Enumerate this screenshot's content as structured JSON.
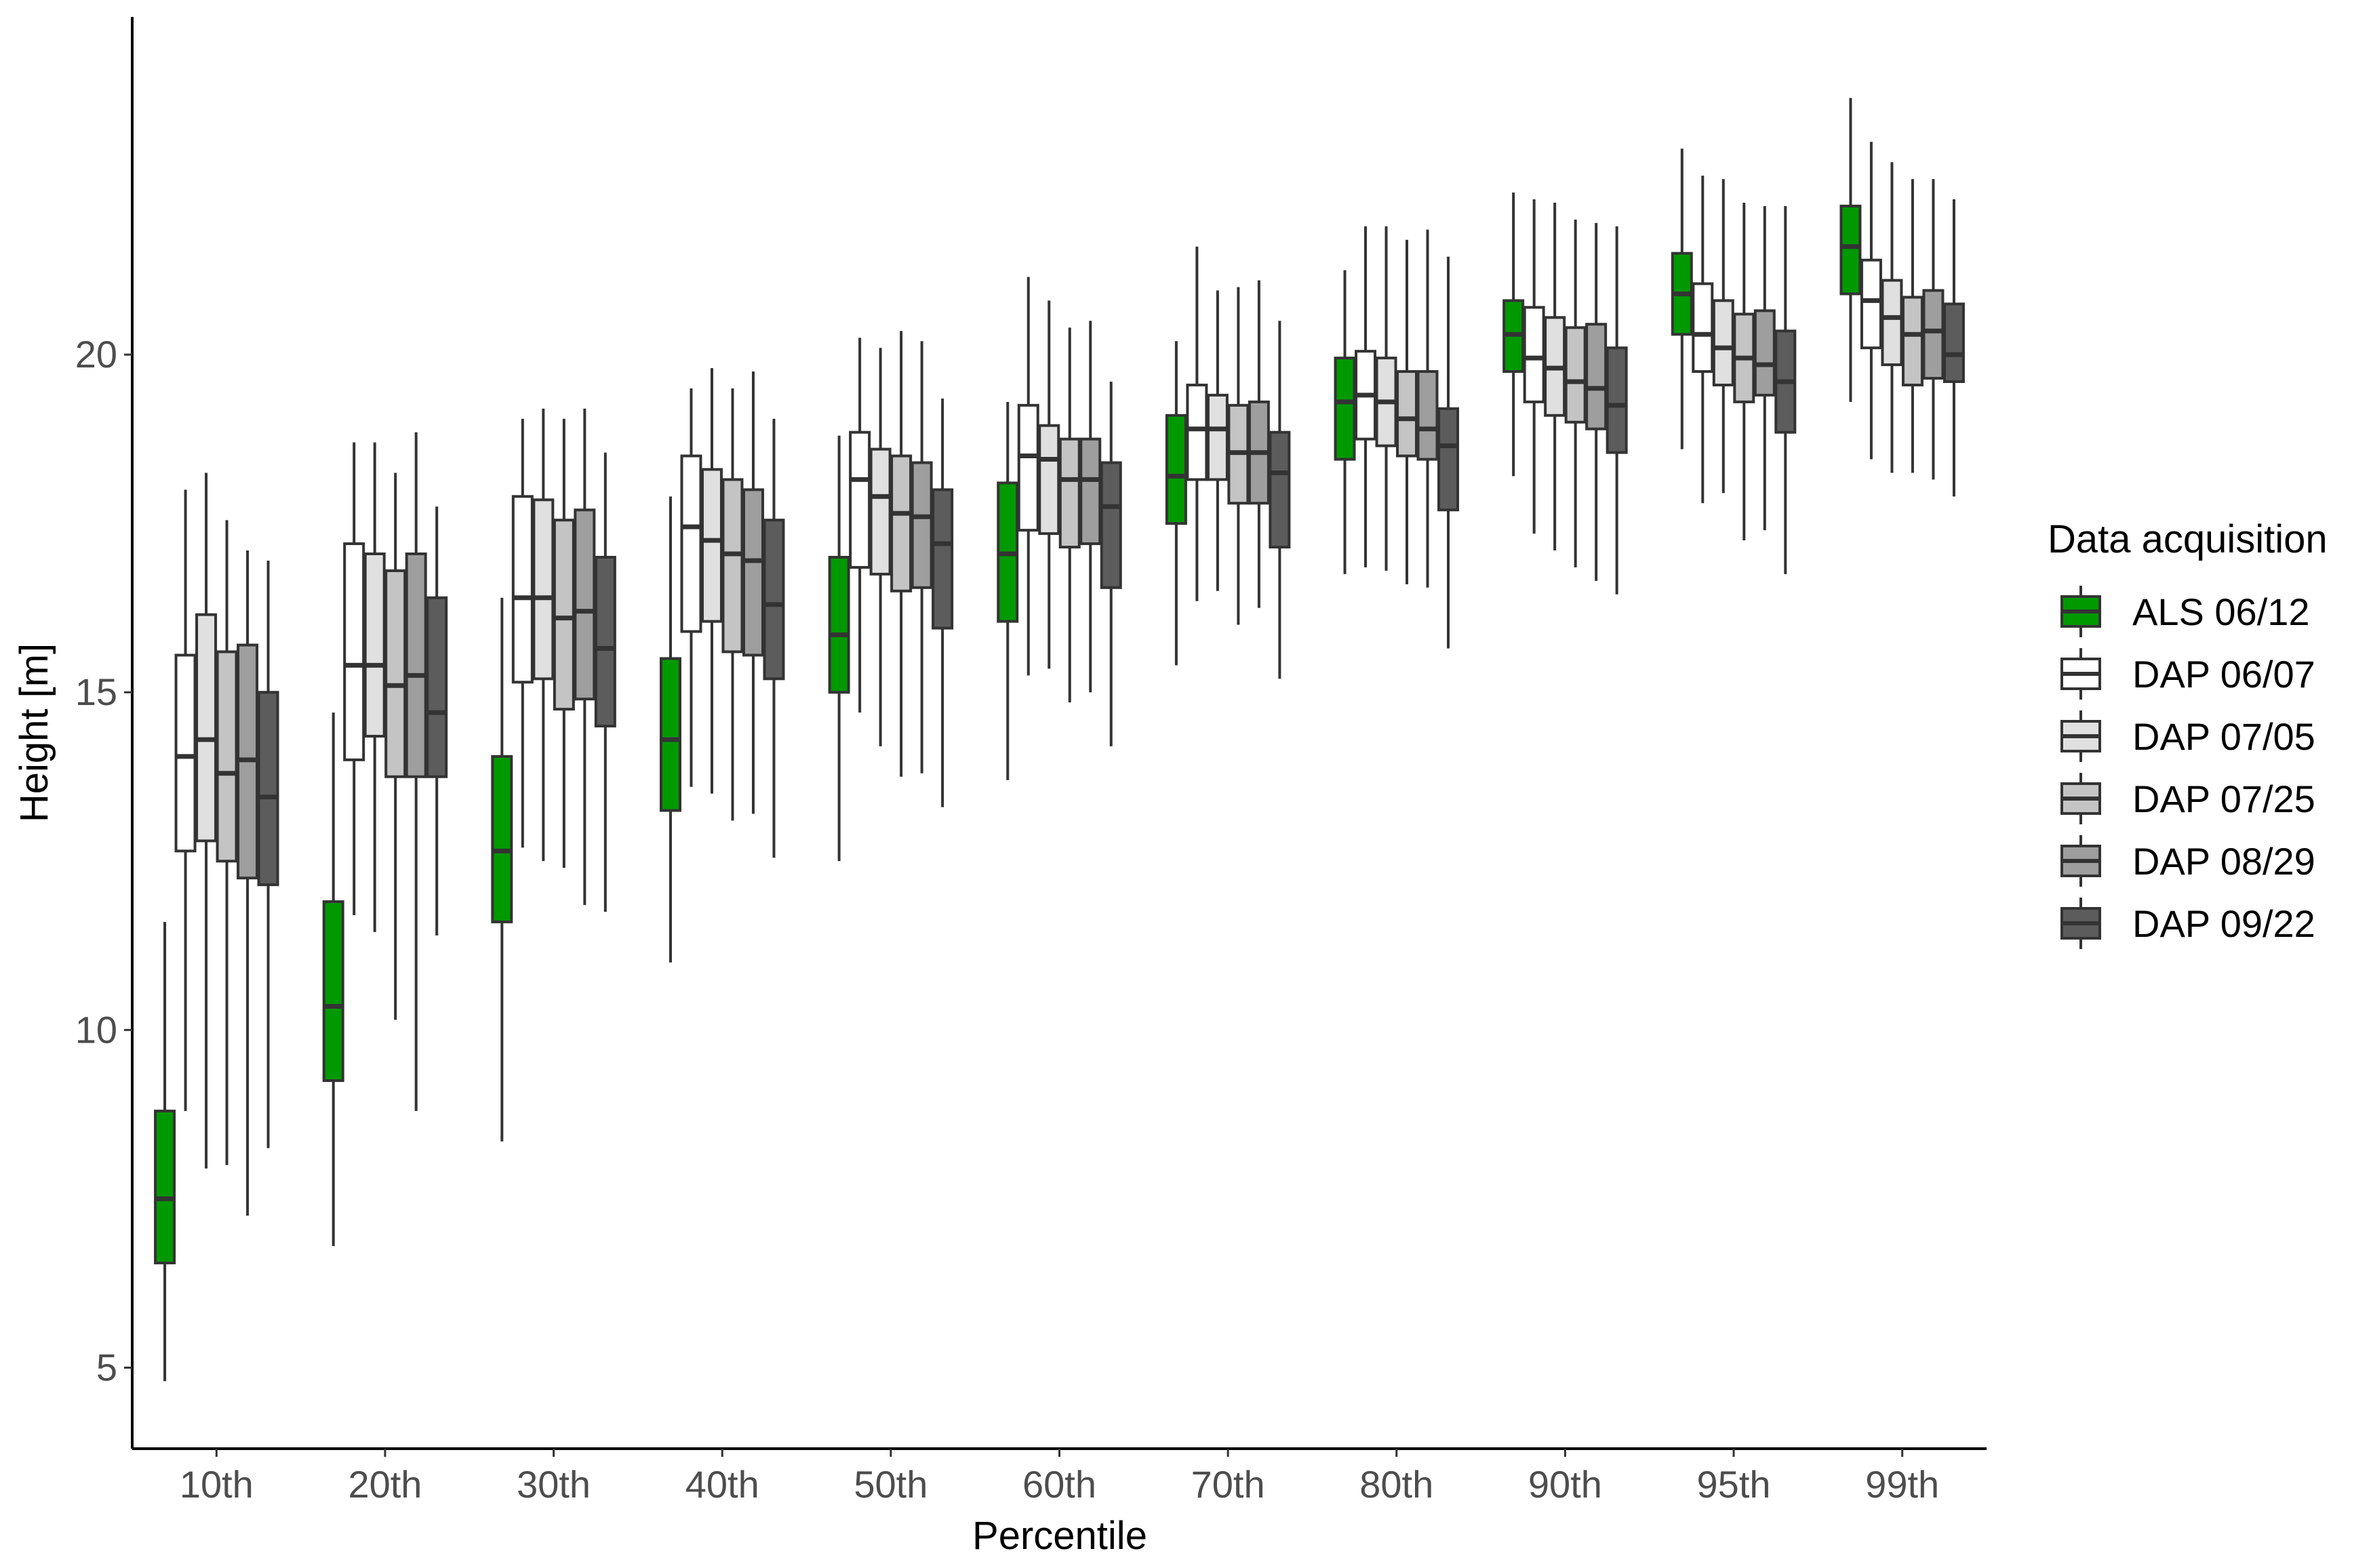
{
  "chart_data": {
    "type": "box",
    "xlabel": "Percentile",
    "ylabel": "Height [m]",
    "ylim": [
      3.8,
      25.0
    ],
    "yticks": [
      5,
      10,
      15,
      20
    ],
    "ytick_labels": [
      "5",
      "10",
      "15",
      "20"
    ],
    "categories": [
      "10th",
      "20th",
      "30th",
      "40th",
      "50th",
      "60th",
      "70th",
      "80th",
      "90th",
      "95th",
      "99th"
    ],
    "grid": false,
    "legend": {
      "title": "Data acquisition",
      "position": "right"
    },
    "series": [
      {
        "name": "ALS 06/12",
        "color": "#009900",
        "boxes": [
          {
            "min": 4.8,
            "q1": 6.55,
            "median": 7.5,
            "q3": 8.8,
            "max": 11.6
          },
          {
            "min": 6.8,
            "q1": 9.25,
            "median": 10.35,
            "q3": 11.9,
            "max": 14.7
          },
          {
            "min": 8.35,
            "q1": 11.6,
            "median": 12.65,
            "q3": 14.05,
            "max": 16.4
          },
          {
            "min": 11.0,
            "q1": 13.25,
            "median": 14.3,
            "q3": 15.5,
            "max": 17.9
          },
          {
            "min": 12.5,
            "q1": 15.0,
            "median": 15.85,
            "q3": 17.0,
            "max": 18.8
          },
          {
            "min": 13.7,
            "q1": 16.05,
            "median": 17.05,
            "q3": 18.1,
            "max": 19.3
          },
          {
            "min": 15.4,
            "q1": 17.5,
            "median": 18.2,
            "q3": 19.1,
            "max": 20.2
          },
          {
            "min": 16.75,
            "q1": 18.45,
            "median": 19.3,
            "q3": 19.95,
            "max": 21.25
          },
          {
            "min": 18.2,
            "q1": 19.75,
            "median": 20.3,
            "q3": 20.8,
            "max": 22.4
          },
          {
            "min": 18.6,
            "q1": 20.3,
            "median": 20.9,
            "q3": 21.5,
            "max": 23.05
          },
          {
            "min": 19.3,
            "q1": 20.9,
            "median": 21.6,
            "q3": 22.2,
            "max": 23.8
          }
        ]
      },
      {
        "name": "DAP 06/07",
        "color": "#ffffff",
        "boxes": [
          {
            "min": 8.8,
            "q1": 12.65,
            "median": 14.05,
            "q3": 15.55,
            "max": 18.0
          },
          {
            "min": 11.7,
            "q1": 14.0,
            "median": 15.4,
            "q3": 17.2,
            "max": 18.7
          },
          {
            "min": 12.7,
            "q1": 15.15,
            "median": 16.4,
            "q3": 17.9,
            "max": 19.05
          },
          {
            "min": 13.6,
            "q1": 15.9,
            "median": 17.45,
            "q3": 18.5,
            "max": 19.5
          },
          {
            "min": 14.7,
            "q1": 16.85,
            "median": 18.15,
            "q3": 18.85,
            "max": 20.25
          },
          {
            "min": 15.25,
            "q1": 17.4,
            "median": 18.5,
            "q3": 19.25,
            "max": 21.15
          },
          {
            "min": 16.35,
            "q1": 18.15,
            "median": 18.9,
            "q3": 19.55,
            "max": 21.6
          },
          {
            "min": 16.85,
            "q1": 18.75,
            "median": 19.4,
            "q3": 20.05,
            "max": 21.9
          },
          {
            "min": 17.35,
            "q1": 19.3,
            "median": 19.95,
            "q3": 20.7,
            "max": 22.3
          },
          {
            "min": 17.8,
            "q1": 19.75,
            "median": 20.3,
            "q3": 21.05,
            "max": 22.65
          },
          {
            "min": 18.45,
            "q1": 20.1,
            "median": 20.8,
            "q3": 21.4,
            "max": 23.15
          }
        ]
      },
      {
        "name": "DAP 07/05",
        "color": "#e0e0e0",
        "boxes": [
          {
            "min": 7.95,
            "q1": 12.8,
            "median": 14.3,
            "q3": 16.15,
            "max": 18.25
          },
          {
            "min": 11.45,
            "q1": 14.35,
            "median": 15.4,
            "q3": 17.05,
            "max": 18.7
          },
          {
            "min": 12.5,
            "q1": 15.2,
            "median": 16.4,
            "q3": 17.85,
            "max": 19.2
          },
          {
            "min": 13.5,
            "q1": 16.05,
            "median": 17.25,
            "q3": 18.3,
            "max": 19.8
          },
          {
            "min": 14.2,
            "q1": 16.75,
            "median": 17.9,
            "q3": 18.6,
            "max": 20.1
          },
          {
            "min": 15.35,
            "q1": 17.35,
            "median": 18.45,
            "q3": 18.95,
            "max": 20.8
          },
          {
            "min": 16.5,
            "q1": 18.15,
            "median": 18.9,
            "q3": 19.4,
            "max": 20.95
          },
          {
            "min": 16.8,
            "q1": 18.65,
            "median": 19.3,
            "q3": 19.95,
            "max": 21.9
          },
          {
            "min": 17.1,
            "q1": 19.1,
            "median": 19.8,
            "q3": 20.55,
            "max": 22.25
          },
          {
            "min": 17.95,
            "q1": 19.55,
            "median": 20.1,
            "q3": 20.8,
            "max": 22.6
          },
          {
            "min": 18.25,
            "q1": 19.85,
            "median": 20.55,
            "q3": 21.1,
            "max": 22.85
          }
        ]
      },
      {
        "name": "DAP 07/25",
        "color": "#c4c4c4",
        "boxes": [
          {
            "min": 8.0,
            "q1": 12.5,
            "median": 13.8,
            "q3": 15.6,
            "max": 17.55
          },
          {
            "min": 10.15,
            "q1": 13.75,
            "median": 15.1,
            "q3": 16.8,
            "max": 18.25
          },
          {
            "min": 12.4,
            "q1": 14.75,
            "median": 16.1,
            "q3": 17.55,
            "max": 19.05
          },
          {
            "min": 13.1,
            "q1": 15.6,
            "median": 17.05,
            "q3": 18.15,
            "max": 19.5
          },
          {
            "min": 13.75,
            "q1": 16.5,
            "median": 17.65,
            "q3": 18.5,
            "max": 20.35
          },
          {
            "min": 14.85,
            "q1": 17.15,
            "median": 18.15,
            "q3": 18.75,
            "max": 20.4
          },
          {
            "min": 16.0,
            "q1": 17.8,
            "median": 18.55,
            "q3": 19.25,
            "max": 21.0
          },
          {
            "min": 16.6,
            "q1": 18.5,
            "median": 19.05,
            "q3": 19.75,
            "max": 21.7
          },
          {
            "min": 16.85,
            "q1": 19.0,
            "median": 19.6,
            "q3": 20.4,
            "max": 22.0
          },
          {
            "min": 17.25,
            "q1": 19.3,
            "median": 19.95,
            "q3": 20.6,
            "max": 22.25
          },
          {
            "min": 18.25,
            "q1": 19.55,
            "median": 20.3,
            "q3": 20.85,
            "max": 22.6
          }
        ]
      },
      {
        "name": "DAP 08/29",
        "color": "#9e9e9e",
        "boxes": [
          {
            "min": 7.25,
            "q1": 12.25,
            "median": 14.0,
            "q3": 15.7,
            "max": 17.1
          },
          {
            "min": 8.8,
            "q1": 13.75,
            "median": 15.25,
            "q3": 17.05,
            "max": 18.85
          },
          {
            "min": 11.85,
            "q1": 14.9,
            "median": 16.2,
            "q3": 17.7,
            "max": 19.2
          },
          {
            "min": 13.2,
            "q1": 15.55,
            "median": 16.95,
            "q3": 18.0,
            "max": 19.75
          },
          {
            "min": 13.8,
            "q1": 16.55,
            "median": 17.6,
            "q3": 18.4,
            "max": 20.2
          },
          {
            "min": 15.0,
            "q1": 17.2,
            "median": 18.15,
            "q3": 18.75,
            "max": 20.5
          },
          {
            "min": 16.25,
            "q1": 17.8,
            "median": 18.55,
            "q3": 19.3,
            "max": 21.1
          },
          {
            "min": 16.55,
            "q1": 18.45,
            "median": 18.9,
            "q3": 19.75,
            "max": 21.85
          },
          {
            "min": 16.65,
            "q1": 18.9,
            "median": 19.5,
            "q3": 20.45,
            "max": 21.95
          },
          {
            "min": 17.4,
            "q1": 19.4,
            "median": 19.85,
            "q3": 20.65,
            "max": 22.2
          },
          {
            "min": 18.15,
            "q1": 19.65,
            "median": 20.35,
            "q3": 20.95,
            "max": 22.6
          }
        ]
      },
      {
        "name": "DAP 09/22",
        "color": "#5c5c5c",
        "boxes": [
          {
            "min": 8.25,
            "q1": 12.15,
            "median": 13.45,
            "q3": 15.0,
            "max": 16.95
          },
          {
            "min": 11.4,
            "q1": 13.75,
            "median": 14.7,
            "q3": 16.4,
            "max": 17.75
          },
          {
            "min": 11.75,
            "q1": 14.5,
            "median": 15.65,
            "q3": 17.0,
            "max": 18.55
          },
          {
            "min": 12.55,
            "q1": 15.2,
            "median": 16.3,
            "q3": 17.55,
            "max": 19.05
          },
          {
            "min": 13.3,
            "q1": 15.95,
            "median": 17.2,
            "q3": 18.0,
            "max": 19.35
          },
          {
            "min": 14.2,
            "q1": 16.55,
            "median": 17.75,
            "q3": 18.4,
            "max": 19.6
          },
          {
            "min": 15.2,
            "q1": 17.15,
            "median": 18.25,
            "q3": 18.85,
            "max": 20.5
          },
          {
            "min": 15.65,
            "q1": 17.7,
            "median": 18.65,
            "q3": 19.2,
            "max": 21.45
          },
          {
            "min": 16.45,
            "q1": 18.55,
            "median": 19.25,
            "q3": 20.1,
            "max": 21.9
          },
          {
            "min": 16.75,
            "q1": 18.85,
            "median": 19.6,
            "q3": 20.35,
            "max": 22.2
          },
          {
            "min": 17.9,
            "q1": 19.6,
            "median": 20.0,
            "q3": 20.75,
            "max": 22.3
          }
        ]
      }
    ]
  }
}
